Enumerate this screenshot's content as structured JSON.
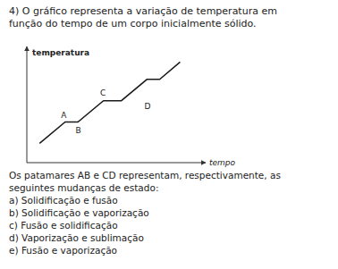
{
  "chart_data": {
    "type": "line",
    "title": "4)  O gráfico representa a variação de temperatura em",
    "subtitle": "função do tempo de um corpo inicialmente sólido.",
    "y_label": "temperatura",
    "x_label": "tempo",
    "x": [
      0.5,
      1.5,
      2.0,
      3.0,
      3.7,
      4.7,
      5.2,
      6.0
    ],
    "values": [
      1.0,
      2.1,
      2.1,
      3.2,
      3.2,
      4.3,
      4.3,
      5.2
    ],
    "color": "#1a1a1a",
    "xlim": [
      0,
      7.0
    ],
    "ylim": [
      0,
      6.0
    ],
    "xticks": [],
    "yticks": [],
    "tick_labels": false,
    "grid": false,
    "annotations": [
      {
        "text": "A",
        "x": 1.45,
        "y": 2.22
      },
      {
        "text": "B",
        "x": 2.02,
        "y": 1.95
      },
      {
        "text": "C",
        "x": 2.98,
        "y": 3.38
      },
      {
        "text": "D",
        "x": 4.72,
        "y": 3.18
      },
      {
        "text": "Os patamares AB e CD representam, respectivamente, as"
      },
      {
        "text": "seguintes mudanças de estado:"
      },
      {
        "text": "a)  Solidificação e fusão"
      },
      {
        "text": "b)  Solidificação e vaporização"
      },
      {
        "text": "c)  Fusão e solidificação"
      },
      {
        "text": "d)  Vaporização e sublimação"
      },
      {
        "text": "e)  Fusão e vaporização"
      }
    ]
  }
}
